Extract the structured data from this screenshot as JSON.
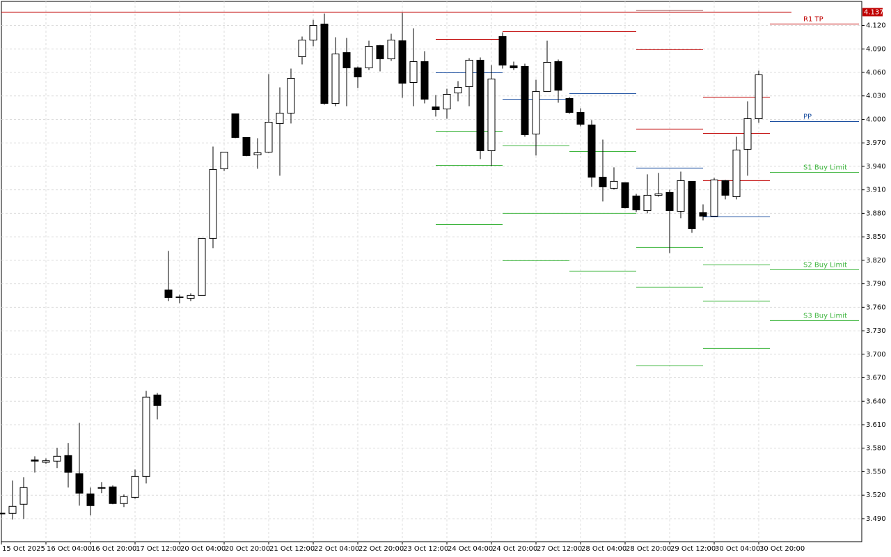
{
  "chart_data": {
    "type": "candlestick",
    "up_color": "#ffffff",
    "down_color": "#000000",
    "grid": true,
    "xlim": [
      0,
      77.25
    ],
    "ylim": [
      3.4606,
      4.1507
    ],
    "yticks": [
      {
        "value": 4.12,
        "label": "4.120"
      },
      {
        "value": 4.09,
        "label": "4.090"
      },
      {
        "value": 4.06,
        "label": "4.060"
      },
      {
        "value": 4.03,
        "label": "4.030"
      },
      {
        "value": 4.0,
        "label": "4.000"
      },
      {
        "value": 3.97,
        "label": "3.970"
      },
      {
        "value": 3.94,
        "label": "3.940"
      },
      {
        "value": 3.91,
        "label": "3.910"
      },
      {
        "value": 3.88,
        "label": "3.880"
      },
      {
        "value": 3.85,
        "label": "3.850"
      },
      {
        "value": 3.82,
        "label": "3.820"
      },
      {
        "value": 3.79,
        "label": "3.790"
      },
      {
        "value": 3.76,
        "label": "3.760"
      },
      {
        "value": 3.73,
        "label": "3.730"
      },
      {
        "value": 3.7,
        "label": "3.700"
      },
      {
        "value": 3.67,
        "label": "3.670"
      },
      {
        "value": 3.64,
        "label": "3.640"
      },
      {
        "value": 3.61,
        "label": "3.610"
      },
      {
        "value": 3.58,
        "label": "3.580"
      },
      {
        "value": 3.55,
        "label": "3.550"
      },
      {
        "value": 3.52,
        "label": "3.520"
      },
      {
        "value": 3.49,
        "label": "3.490"
      }
    ],
    "categories": [
      "15 Oct 2025",
      null,
      null,
      null,
      "16 Oct 04:00",
      null,
      null,
      null,
      "16 Oct 20:00",
      null,
      null,
      null,
      "17 Oct 12:00",
      null,
      null,
      null,
      "20 Oct 04:00",
      null,
      null,
      null,
      "20 Oct 20:00",
      null,
      null,
      null,
      "21 Oct 12:00",
      null,
      null,
      null,
      "22 Oct 04:00",
      null,
      null,
      null,
      "22 Oct 20:00",
      null,
      null,
      null,
      "23 Oct 12:00",
      null,
      null,
      null,
      "24 Oct 04:00",
      null,
      null,
      null,
      "24 Oct 20:00",
      null,
      null,
      null,
      "27 Oct 12:00",
      null,
      null,
      null,
      "28 Oct 04:00",
      null,
      null,
      null,
      "28 Oct 20:00",
      null,
      null,
      null,
      "29 Oct 12:00",
      null,
      null,
      null,
      "30 Oct 04:00",
      null,
      null,
      null,
      "30 Oct 20:00"
    ],
    "open": [
      3.497,
      3.4968,
      3.5084,
      3.565,
      3.562,
      3.5635,
      3.5706,
      3.5475,
      3.5217,
      3.5297,
      3.5306,
      3.5093,
      3.5172,
      3.5439,
      3.648,
      3.7822,
      3.7733,
      3.7715,
      3.7751,
      3.848,
      3.9369,
      4.0071,
      3.9769,
      3.9547,
      3.9582,
      3.9947,
      4.008,
      4.08,
      4.1013,
      4.1218,
      4.0204,
      4.0853,
      4.0658,
      4.0658,
      4.0942,
      4.0773,
      4.1004,
      4.0471,
      4.0738,
      4.016,
      4.0133,
      4.0338,
      4.0418,
      4.0756,
      3.96,
      4.1058,
      4.0684,
      4.0676,
      3.9813,
      4.0356,
      4.0738,
      4.0267,
      4.0089,
      3.9929,
      3.9262,
      3.912,
      3.9191,
      3.9022,
      3.8835,
      3.9031,
      3.9067,
      3.8826,
      3.9209,
      3.8809,
      3.8764,
      3.9218,
      3.9013,
      3.9618,
      4.0009
    ],
    "high": [
      3.498,
      3.5386,
      3.543,
      3.5697,
      3.567,
      3.5804,
      3.5867,
      3.6124,
      3.5297,
      3.5368,
      3.5324,
      3.5208,
      3.5528,
      3.6533,
      3.6506,
      3.832,
      3.776,
      3.7777,
      3.848,
      3.9653,
      3.9582,
      4.0071,
      3.9769,
      3.976,
      4.0578,
      4.0409,
      4.0649,
      4.1058,
      4.1271,
      4.1351,
      4.1049,
      4.104,
      4.0676,
      4.1004,
      4.0951,
      4.1093,
      4.136,
      4.1164,
      4.0871,
      4.0311,
      4.0391,
      4.0489,
      4.0782,
      4.0791,
      4.0693,
      4.1111,
      4.0738,
      4.0711,
      4.0507,
      4.1004,
      4.0764,
      4.0284,
      4.0142,
      3.9991,
      3.9742,
      3.9387,
      3.9191,
      3.9049,
      3.9298,
      3.9316,
      3.9102,
      3.9333,
      3.9209,
      3.8915,
      3.9253,
      3.9227,
      3.9778,
      4.0231,
      4.0622
    ],
    "low": [
      3.495,
      3.4888,
      3.4897,
      3.549,
      3.56,
      3.5546,
      3.5297,
      3.5066,
      3.4942,
      3.5226,
      3.5084,
      3.5048,
      3.5155,
      3.535,
      3.6168,
      3.768,
      3.7653,
      3.768,
      3.775,
      3.8355,
      3.934,
      3.976,
      3.9529,
      3.9369,
      3.9573,
      3.928,
      3.9947,
      4.0702,
      4.0933,
      4.0187,
      4.0169,
      4.0169,
      4.04,
      4.0631,
      4.0613,
      4.0747,
      4.0275,
      4.0169,
      4.0204,
      4.0036,
      4.0009,
      4.0231,
      4.0169,
      3.9493,
      3.9404,
      4.0649,
      4.0631,
      3.9778,
      3.9538,
      4.0356,
      4.0213,
      4.0071,
      3.9911,
      3.9138,
      3.8951,
      3.9102,
      3.8862,
      3.8817,
      3.88,
      3.9013,
      3.8293,
      3.8738,
      3.8551,
      3.871,
      3.8764,
      3.8978,
      3.8978,
      3.928,
      3.9956
    ],
    "close": [
      3.497,
      3.5057,
      3.5297,
      3.5635,
      3.564,
      3.5697,
      3.5493,
      3.5226,
      3.5066,
      3.5288,
      3.5093,
      3.5181,
      3.5439,
      3.6453,
      3.6346,
      3.7724,
      3.7724,
      3.7751,
      3.848,
      3.936,
      3.9582,
      3.9769,
      3.9538,
      3.9573,
      3.9964,
      4.008,
      4.0524,
      4.1013,
      4.12,
      4.0204,
      4.0836,
      4.0658,
      4.0542,
      4.0933,
      4.0773,
      4.1013,
      4.0462,
      4.0738,
      4.0258,
      4.0124,
      4.032,
      4.0409,
      4.0756,
      3.96,
      4.0516,
      4.0693,
      4.0658,
      3.9804,
      4.0356,
      4.0729,
      4.0373,
      4.0089,
      3.9938,
      3.9262,
      3.9138,
      3.9209,
      3.8871,
      3.8844,
      3.9031,
      3.9049,
      3.8835,
      3.9218,
      3.8604,
      3.8764,
      3.9227,
      3.9031,
      3.9609,
      4.0009,
      4.0569
    ],
    "current_price": 4.137,
    "current_price_color": "#c00000",
    "levels": [
      {
        "color": "#c00000",
        "from": 39,
        "to": 45,
        "value": 4.1022
      },
      {
        "color": "#c00000",
        "from": 45,
        "to": 57,
        "value": 4.112
      },
      {
        "color": "#a05050",
        "from": 57,
        "to": 63,
        "value": 4.139
      },
      {
        "color": "#c00000",
        "from": 57,
        "to": 63,
        "value": 4.0889
      },
      {
        "color": "#c00000",
        "from": 57,
        "to": 63,
        "value": 3.9876
      },
      {
        "color": "#c00000",
        "from": 63,
        "to": 69,
        "value": 4.0284
      },
      {
        "color": "#c00000",
        "from": 63,
        "to": 69,
        "value": 3.9822
      },
      {
        "color": "#c00000",
        "from": 63,
        "to": 69,
        "value": 3.9218
      },
      {
        "color": "#c00000",
        "from": 69,
        "to": 77,
        "value": 4.1218,
        "label": "R1 TP"
      },
      {
        "color": "#1c4fa0",
        "from": 39,
        "to": 45,
        "value": 4.0596
      },
      {
        "color": "#1c4fa0",
        "from": 45,
        "to": 51,
        "value": 4.0258
      },
      {
        "color": "#1c4fa0",
        "from": 51,
        "to": 57,
        "value": 4.0329
      },
      {
        "color": "#1c4fa0",
        "from": 57,
        "to": 63,
        "value": 3.9378
      },
      {
        "color": "#1c4fa0",
        "from": 63,
        "to": 69,
        "value": 3.8755
      },
      {
        "color": "#1c4fa0",
        "from": 69,
        "to": 77,
        "value": 3.9973,
        "label": "PP"
      },
      {
        "color": "#3cb43c",
        "from": 39,
        "to": 45,
        "value": 3.9849
      },
      {
        "color": "#3cb43c",
        "from": 39,
        "to": 45,
        "value": 3.9413
      },
      {
        "color": "#3cb43c",
        "from": 39,
        "to": 45,
        "value": 3.8657
      },
      {
        "color": "#3cb43c",
        "from": 45,
        "to": 51,
        "value": 3.9662
      },
      {
        "color": "#3cb43c",
        "from": 45,
        "to": 57,
        "value": 3.88
      },
      {
        "color": "#3cb43c",
        "from": 45,
        "to": 51,
        "value": 3.8195
      },
      {
        "color": "#3cb43c",
        "from": 51,
        "to": 57,
        "value": 3.9591
      },
      {
        "color": "#3cb43c",
        "from": 51,
        "to": 57,
        "value": 3.8062
      },
      {
        "color": "#3cb43c",
        "from": 57,
        "to": 63,
        "value": 3.8364
      },
      {
        "color": "#3cb43c",
        "from": 57,
        "to": 63,
        "value": 3.7857
      },
      {
        "color": "#3cb43c",
        "from": 57,
        "to": 63,
        "value": 3.6853
      },
      {
        "color": "#3cb43c",
        "from": 63,
        "to": 69,
        "value": 3.8142
      },
      {
        "color": "#3cb43c",
        "from": 63,
        "to": 69,
        "value": 3.768
      },
      {
        "color": "#3cb43c",
        "from": 63,
        "to": 69,
        "value": 3.7075
      },
      {
        "color": "#3cb43c",
        "from": 69,
        "to": 77,
        "value": 3.9324,
        "label": "S1 Buy Limit"
      },
      {
        "color": "#3cb43c",
        "from": 69,
        "to": 77,
        "value": 3.808,
        "label": "S2 Buy Limit"
      },
      {
        "color": "#3cb43c",
        "from": 69,
        "to": 77,
        "value": 3.7431,
        "label": "S3 Buy Limit"
      }
    ]
  }
}
